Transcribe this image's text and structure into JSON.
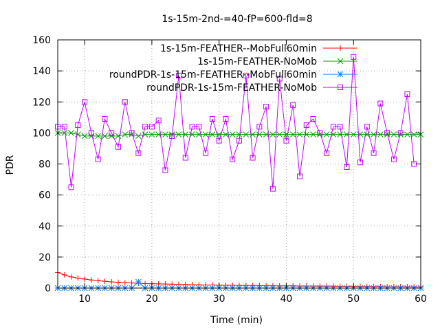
{
  "chart_data": {
    "type": "line",
    "title": "1s-15m-2nd-=40-fP=600-fld=8",
    "xlabel": "Time (min)",
    "ylabel": "PDR",
    "xlim": [
      6,
      60
    ],
    "ylim": [
      0,
      160
    ],
    "xticks": [
      10,
      20,
      30,
      40,
      50,
      60
    ],
    "yticks": [
      0,
      20,
      40,
      60,
      80,
      100,
      120,
      140,
      160
    ],
    "grid": true,
    "legend_position": "top-right",
    "series": [
      {
        "name": "1s-15m-FEATHER--MobFull60min",
        "color": "#ff0000",
        "marker": "plus",
        "x": [
          6,
          7,
          8,
          9,
          10,
          11,
          12,
          13,
          14,
          15,
          16,
          17,
          18,
          19,
          20,
          21,
          22,
          23,
          24,
          25,
          26,
          27,
          28,
          29,
          30,
          31,
          32,
          33,
          34,
          35,
          36,
          37,
          38,
          39,
          40,
          41,
          42,
          43,
          44,
          45,
          46,
          47,
          48,
          49,
          50,
          51,
          52,
          53,
          54,
          55,
          56,
          57,
          58,
          59,
          60
        ],
        "y": [
          10,
          8.5,
          7.2,
          6.4,
          5.8,
          5.2,
          4.8,
          4.4,
          4.0,
          3.7,
          3.5,
          3.3,
          3.1,
          2.9,
          2.8,
          2.7,
          2.6,
          2.5,
          2.4,
          2.3,
          2.2,
          2.1,
          2.0,
          2.0,
          1.9,
          1.8,
          1.8,
          1.7,
          1.7,
          1.6,
          1.6,
          1.5,
          1.5,
          1.4,
          1.4,
          1.4,
          1.3,
          1.3,
          1.3,
          1.2,
          1.2,
          1.2,
          1.1,
          1.1,
          1.1,
          1.0,
          1.0,
          1.0,
          1.0,
          0.9,
          0.9,
          0.9,
          0.9,
          0.8,
          0.8
        ]
      },
      {
        "name": "1s-15m-FEATHER-NoMob",
        "color": "#00a000",
        "marker": "cross",
        "x": [
          6,
          7,
          8,
          9,
          10,
          11,
          12,
          13,
          14,
          15,
          16,
          17,
          18,
          19,
          20,
          21,
          22,
          23,
          24,
          25,
          26,
          27,
          28,
          29,
          30,
          31,
          32,
          33,
          34,
          35,
          36,
          37,
          38,
          39,
          40,
          41,
          42,
          43,
          44,
          45,
          46,
          47,
          48,
          49,
          50,
          51,
          52,
          53,
          54,
          55,
          56,
          57,
          58,
          59,
          60
        ],
        "y": [
          100,
          100,
          100,
          99,
          98,
          98,
          98,
          98,
          98,
          98,
          99,
          99,
          98,
          99,
          99,
          99,
          99,
          99,
          99,
          99,
          99,
          99,
          99,
          99,
          99,
          99,
          99,
          99,
          99,
          99,
          99,
          99,
          99,
          99,
          99,
          99,
          99,
          99,
          99,
          99,
          99,
          99,
          99,
          99,
          99,
          99,
          99,
          99,
          99,
          99,
          99,
          99,
          99,
          99,
          99
        ]
      },
      {
        "name": "roundPDR-1s-15m-FEATHER--MobFull60min",
        "color": "#0080ff",
        "marker": "star",
        "x": [
          6,
          7,
          8,
          9,
          10,
          11,
          12,
          13,
          14,
          15,
          16,
          17,
          18,
          19,
          20,
          21,
          22,
          23,
          24,
          25,
          26,
          27,
          28,
          29,
          30,
          31,
          32,
          33,
          34,
          35,
          36,
          37,
          38,
          39,
          40,
          41,
          42,
          43,
          44,
          45,
          46,
          47,
          48,
          49,
          50,
          51,
          52,
          53,
          54,
          55,
          56,
          57,
          58,
          59,
          60
        ],
        "y": [
          0,
          0,
          0,
          0,
          0,
          0,
          0,
          0,
          0,
          0,
          0,
          0,
          4,
          0,
          0,
          0,
          0,
          0,
          0,
          0,
          0,
          0,
          0,
          0,
          0,
          0,
          0,
          0,
          0,
          0,
          0,
          0,
          0,
          0,
          0,
          0,
          0,
          0,
          0,
          0,
          0,
          0,
          0,
          0,
          0,
          0,
          0,
          0,
          0,
          0,
          0,
          0,
          0,
          0,
          0
        ]
      },
      {
        "name": "roundPDR-1s-15m-FEATHER-NoMob",
        "color": "#c000ff",
        "marker": "square",
        "x": [
          6,
          7,
          8,
          9,
          10,
          11,
          12,
          13,
          14,
          15,
          16,
          17,
          18,
          19,
          20,
          21,
          22,
          23,
          24,
          25,
          26,
          27,
          28,
          29,
          30,
          31,
          32,
          33,
          34,
          35,
          36,
          37,
          38,
          39,
          40,
          41,
          42,
          43,
          44,
          45,
          46,
          47,
          48,
          49,
          50,
          51,
          52,
          53,
          54,
          55,
          56,
          57,
          58,
          59
        ],
        "y": [
          104,
          104,
          65,
          105,
          120,
          100,
          83,
          109,
          100,
          91,
          120,
          100,
          87,
          104,
          104,
          108,
          76,
          98,
          137,
          84,
          104,
          104,
          87,
          109,
          95,
          109,
          83,
          95,
          137,
          84,
          104,
          117,
          64,
          135,
          95,
          118,
          72,
          105,
          109,
          100,
          87,
          104,
          104,
          78,
          149,
          81,
          104,
          87,
          119,
          100,
          83,
          100,
          125,
          80
        ]
      }
    ]
  }
}
